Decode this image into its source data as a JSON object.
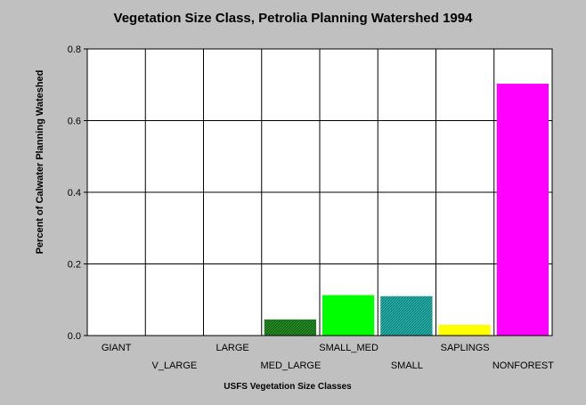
{
  "chart_data": {
    "type": "bar",
    "title": "Vegetation Size Class, Petrolia Planning Watershed 1994",
    "xlabel": "USFS Vegetation Size Classes",
    "ylabel": "Percent of Calwater Planning Wateshed",
    "categories": [
      "GIANT",
      "V_LARGE",
      "LARGE",
      "MED_LARGE",
      "SMALL_MED",
      "SMALL",
      "SAPLINGS",
      "NONFOREST"
    ],
    "values": [
      0,
      0,
      0,
      0.045,
      0.113,
      0.11,
      0.03,
      0.703
    ],
    "colors": [
      "#808080",
      "#808080",
      "#808080",
      "#228b22",
      "#00ff00",
      "#20b2aa",
      "#ffff00",
      "#ff00ff"
    ],
    "hatched": [
      false,
      false,
      false,
      true,
      false,
      true,
      false,
      false
    ],
    "ylim": [
      0,
      0.8
    ],
    "yticks": [
      "0.0",
      "0.2",
      "0.4",
      "0.6",
      "0.8"
    ],
    "grid": true,
    "legend": "none"
  }
}
